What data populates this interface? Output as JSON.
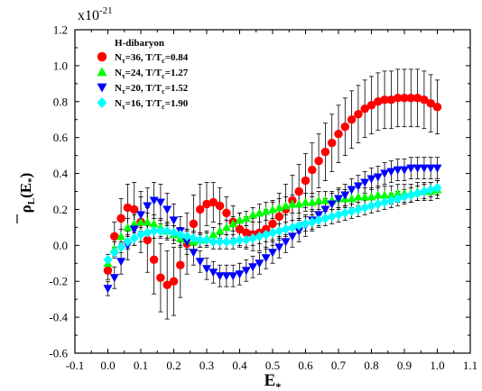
{
  "chart_data": {
    "type": "scatter",
    "multiplier": "x10",
    "multiplier_exp": "-21",
    "xlabel": "E",
    "xlabel_sub": "*",
    "ylabel": "ρ",
    "ylabel_sub": "L",
    "ylabel_arg": "(E",
    "ylabel_arg_sub": "*",
    "ylabel_close": ")",
    "xlim": [
      -0.1,
      1.1
    ],
    "ylim": [
      -0.6,
      1.2
    ],
    "xticks": [
      "-0.1",
      "0.0",
      "0.1",
      "0.2",
      "0.3",
      "0.4",
      "0.5",
      "0.6",
      "0.7",
      "0.8",
      "0.9",
      "1.0",
      "1.1"
    ],
    "yticks": [
      "-0.6",
      "-0.4",
      "-0.2",
      "0.0",
      "0.2",
      "0.4",
      "0.6",
      "0.8",
      "1.0",
      "1.2"
    ],
    "legend_title": "H-dibaryon",
    "legend_position": "top-left",
    "series": [
      {
        "name": "N_τ=36, T/T_c=0.84",
        "label_N": "N",
        "label_Nsub": "τ",
        "label_mid": "=36,  T/T",
        "label_Tsub": "c",
        "label_end": "=0.84",
        "color": "#ff0000",
        "marker": "circle",
        "x": [
          0.0,
          0.02,
          0.04,
          0.06,
          0.08,
          0.1,
          0.12,
          0.14,
          0.16,
          0.18,
          0.2,
          0.22,
          0.24,
          0.26,
          0.28,
          0.3,
          0.32,
          0.34,
          0.36,
          0.38,
          0.4,
          0.42,
          0.44,
          0.46,
          0.48,
          0.5,
          0.52,
          0.54,
          0.56,
          0.58,
          0.6,
          0.62,
          0.64,
          0.66,
          0.68,
          0.7,
          0.72,
          0.74,
          0.76,
          0.78,
          0.8,
          0.82,
          0.84,
          0.86,
          0.88,
          0.9,
          0.92,
          0.94,
          0.96,
          0.98,
          1.0
        ],
        "y": [
          -0.14,
          0.05,
          0.15,
          0.21,
          0.2,
          0.13,
          0.03,
          -0.08,
          -0.18,
          -0.22,
          -0.2,
          -0.11,
          0.01,
          0.12,
          0.2,
          0.23,
          0.24,
          0.22,
          0.18,
          0.13,
          0.09,
          0.07,
          0.06,
          0.07,
          0.09,
          0.12,
          0.16,
          0.2,
          0.25,
          0.3,
          0.36,
          0.42,
          0.47,
          0.52,
          0.57,
          0.62,
          0.66,
          0.7,
          0.73,
          0.76,
          0.78,
          0.8,
          0.81,
          0.81,
          0.82,
          0.82,
          0.82,
          0.82,
          0.81,
          0.79,
          0.77
        ],
        "err": [
          0.05,
          0.08,
          0.11,
          0.13,
          0.15,
          0.17,
          0.18,
          0.19,
          0.19,
          0.19,
          0.19,
          0.18,
          0.17,
          0.16,
          0.14,
          0.12,
          0.11,
          0.1,
          0.09,
          0.09,
          0.09,
          0.09,
          0.09,
          0.1,
          0.11,
          0.12,
          0.13,
          0.14,
          0.14,
          0.15,
          0.15,
          0.15,
          0.15,
          0.16,
          0.16,
          0.16,
          0.16,
          0.16,
          0.16,
          0.16,
          0.16,
          0.16,
          0.16,
          0.16,
          0.16,
          0.16,
          0.16,
          0.16,
          0.16,
          0.16,
          0.15
        ]
      },
      {
        "name": "N_τ=24, T/T_c=1.27",
        "label_N": "N",
        "label_Nsub": "τ",
        "label_mid": "=24,  T/T",
        "label_Tsub": "c",
        "label_end": "=1.27",
        "color": "#00ff00",
        "marker": "triangle-up",
        "x": [
          0.0,
          0.02,
          0.04,
          0.06,
          0.08,
          0.1,
          0.12,
          0.14,
          0.16,
          0.18,
          0.2,
          0.22,
          0.24,
          0.26,
          0.28,
          0.3,
          0.32,
          0.34,
          0.36,
          0.38,
          0.4,
          0.42,
          0.44,
          0.46,
          0.48,
          0.5,
          0.52,
          0.54,
          0.56,
          0.58,
          0.6,
          0.62,
          0.64,
          0.66,
          0.68,
          0.7,
          0.72,
          0.74,
          0.76,
          0.78,
          0.8,
          0.82,
          0.84,
          0.86,
          0.88,
          0.9,
          0.92,
          0.94,
          0.96,
          0.98,
          1.0
        ],
        "y": [
          -0.1,
          -0.02,
          0.05,
          0.1,
          0.12,
          0.13,
          0.13,
          0.12,
          0.1,
          0.08,
          0.06,
          0.04,
          0.03,
          0.02,
          0.03,
          0.04,
          0.06,
          0.08,
          0.1,
          0.12,
          0.14,
          0.15,
          0.17,
          0.18,
          0.19,
          0.2,
          0.21,
          0.22,
          0.23,
          0.23,
          0.24,
          0.24,
          0.25,
          0.25,
          0.25,
          0.26,
          0.26,
          0.26,
          0.27,
          0.27,
          0.27,
          0.28,
          0.28,
          0.28,
          0.29,
          0.29,
          0.29,
          0.3,
          0.3,
          0.3,
          0.31
        ],
        "err": [
          0.03,
          0.04,
          0.04,
          0.05,
          0.05,
          0.05,
          0.05,
          0.05,
          0.05,
          0.05,
          0.05,
          0.05,
          0.05,
          0.05,
          0.04,
          0.04,
          0.04,
          0.04,
          0.04,
          0.04,
          0.04,
          0.04,
          0.04,
          0.05,
          0.05,
          0.05,
          0.05,
          0.05,
          0.05,
          0.05,
          0.05,
          0.05,
          0.05,
          0.05,
          0.05,
          0.05,
          0.05,
          0.05,
          0.05,
          0.05,
          0.05,
          0.05,
          0.05,
          0.05,
          0.05,
          0.05,
          0.05,
          0.05,
          0.05,
          0.05,
          0.05
        ]
      },
      {
        "name": "N_τ=20, T/T_c=1.52",
        "label_N": "N",
        "label_Nsub": "τ",
        "label_mid": "=20,  T/T",
        "label_Tsub": "c",
        "label_end": "=1.52",
        "color": "#0000ff",
        "marker": "triangle-down",
        "x": [
          0.0,
          0.02,
          0.04,
          0.06,
          0.08,
          0.1,
          0.12,
          0.14,
          0.16,
          0.18,
          0.2,
          0.22,
          0.24,
          0.26,
          0.28,
          0.3,
          0.32,
          0.34,
          0.36,
          0.38,
          0.4,
          0.42,
          0.44,
          0.46,
          0.48,
          0.5,
          0.52,
          0.54,
          0.56,
          0.58,
          0.6,
          0.62,
          0.64,
          0.66,
          0.68,
          0.7,
          0.72,
          0.74,
          0.76,
          0.78,
          0.8,
          0.82,
          0.84,
          0.86,
          0.88,
          0.9,
          0.92,
          0.94,
          0.96,
          0.98,
          1.0
        ],
        "y": [
          -0.24,
          -0.18,
          -0.09,
          0.0,
          0.09,
          0.17,
          0.22,
          0.25,
          0.24,
          0.2,
          0.14,
          0.08,
          0.02,
          -0.04,
          -0.09,
          -0.13,
          -0.15,
          -0.17,
          -0.17,
          -0.17,
          -0.16,
          -0.14,
          -0.12,
          -0.1,
          -0.07,
          -0.04,
          -0.01,
          0.02,
          0.05,
          0.08,
          0.11,
          0.14,
          0.17,
          0.2,
          0.23,
          0.26,
          0.28,
          0.31,
          0.33,
          0.35,
          0.37,
          0.38,
          0.4,
          0.41,
          0.42,
          0.42,
          0.43,
          0.43,
          0.43,
          0.43,
          0.43
        ],
        "err": [
          0.04,
          0.06,
          0.07,
          0.08,
          0.09,
          0.1,
          0.1,
          0.1,
          0.1,
          0.09,
          0.09,
          0.08,
          0.07,
          0.07,
          0.06,
          0.06,
          0.06,
          0.06,
          0.06,
          0.06,
          0.06,
          0.06,
          0.06,
          0.06,
          0.06,
          0.06,
          0.06,
          0.06,
          0.06,
          0.06,
          0.06,
          0.06,
          0.06,
          0.06,
          0.06,
          0.06,
          0.06,
          0.06,
          0.06,
          0.06,
          0.06,
          0.06,
          0.06,
          0.06,
          0.06,
          0.06,
          0.06,
          0.06,
          0.06,
          0.06,
          0.06
        ]
      },
      {
        "name": "N_τ=16, T/T_c=1.90",
        "label_N": "N",
        "label_Nsub": "τ",
        "label_mid": "=16,  T/T",
        "label_Tsub": "c",
        "label_end": "=1.90",
        "color": "#00ffff",
        "marker": "diamond",
        "x": [
          0.0,
          0.02,
          0.04,
          0.06,
          0.08,
          0.1,
          0.12,
          0.14,
          0.16,
          0.18,
          0.2,
          0.22,
          0.24,
          0.26,
          0.28,
          0.3,
          0.32,
          0.34,
          0.36,
          0.38,
          0.4,
          0.42,
          0.44,
          0.46,
          0.48,
          0.5,
          0.52,
          0.54,
          0.56,
          0.58,
          0.6,
          0.62,
          0.64,
          0.66,
          0.68,
          0.7,
          0.72,
          0.74,
          0.76,
          0.78,
          0.8,
          0.82,
          0.84,
          0.86,
          0.88,
          0.9,
          0.92,
          0.94,
          0.96,
          0.98,
          1.0
        ],
        "y": [
          -0.08,
          -0.04,
          -0.01,
          0.02,
          0.04,
          0.06,
          0.07,
          0.08,
          0.08,
          0.08,
          0.07,
          0.06,
          0.05,
          0.04,
          0.03,
          0.03,
          0.02,
          0.02,
          0.02,
          0.02,
          0.03,
          0.03,
          0.04,
          0.05,
          0.06,
          0.07,
          0.08,
          0.09,
          0.1,
          0.11,
          0.12,
          0.13,
          0.14,
          0.15,
          0.16,
          0.17,
          0.18,
          0.19,
          0.2,
          0.21,
          0.22,
          0.23,
          0.24,
          0.25,
          0.26,
          0.27,
          0.28,
          0.29,
          0.3,
          0.31,
          0.32
        ],
        "err": [
          0.03,
          0.03,
          0.03,
          0.04,
          0.04,
          0.04,
          0.04,
          0.04,
          0.04,
          0.04,
          0.04,
          0.04,
          0.04,
          0.04,
          0.04,
          0.04,
          0.04,
          0.04,
          0.04,
          0.04,
          0.04,
          0.04,
          0.04,
          0.04,
          0.04,
          0.04,
          0.04,
          0.04,
          0.04,
          0.04,
          0.04,
          0.04,
          0.04,
          0.04,
          0.04,
          0.04,
          0.04,
          0.04,
          0.04,
          0.04,
          0.04,
          0.04,
          0.04,
          0.04,
          0.04,
          0.04,
          0.04,
          0.04,
          0.04,
          0.04,
          0.04
        ]
      }
    ]
  }
}
